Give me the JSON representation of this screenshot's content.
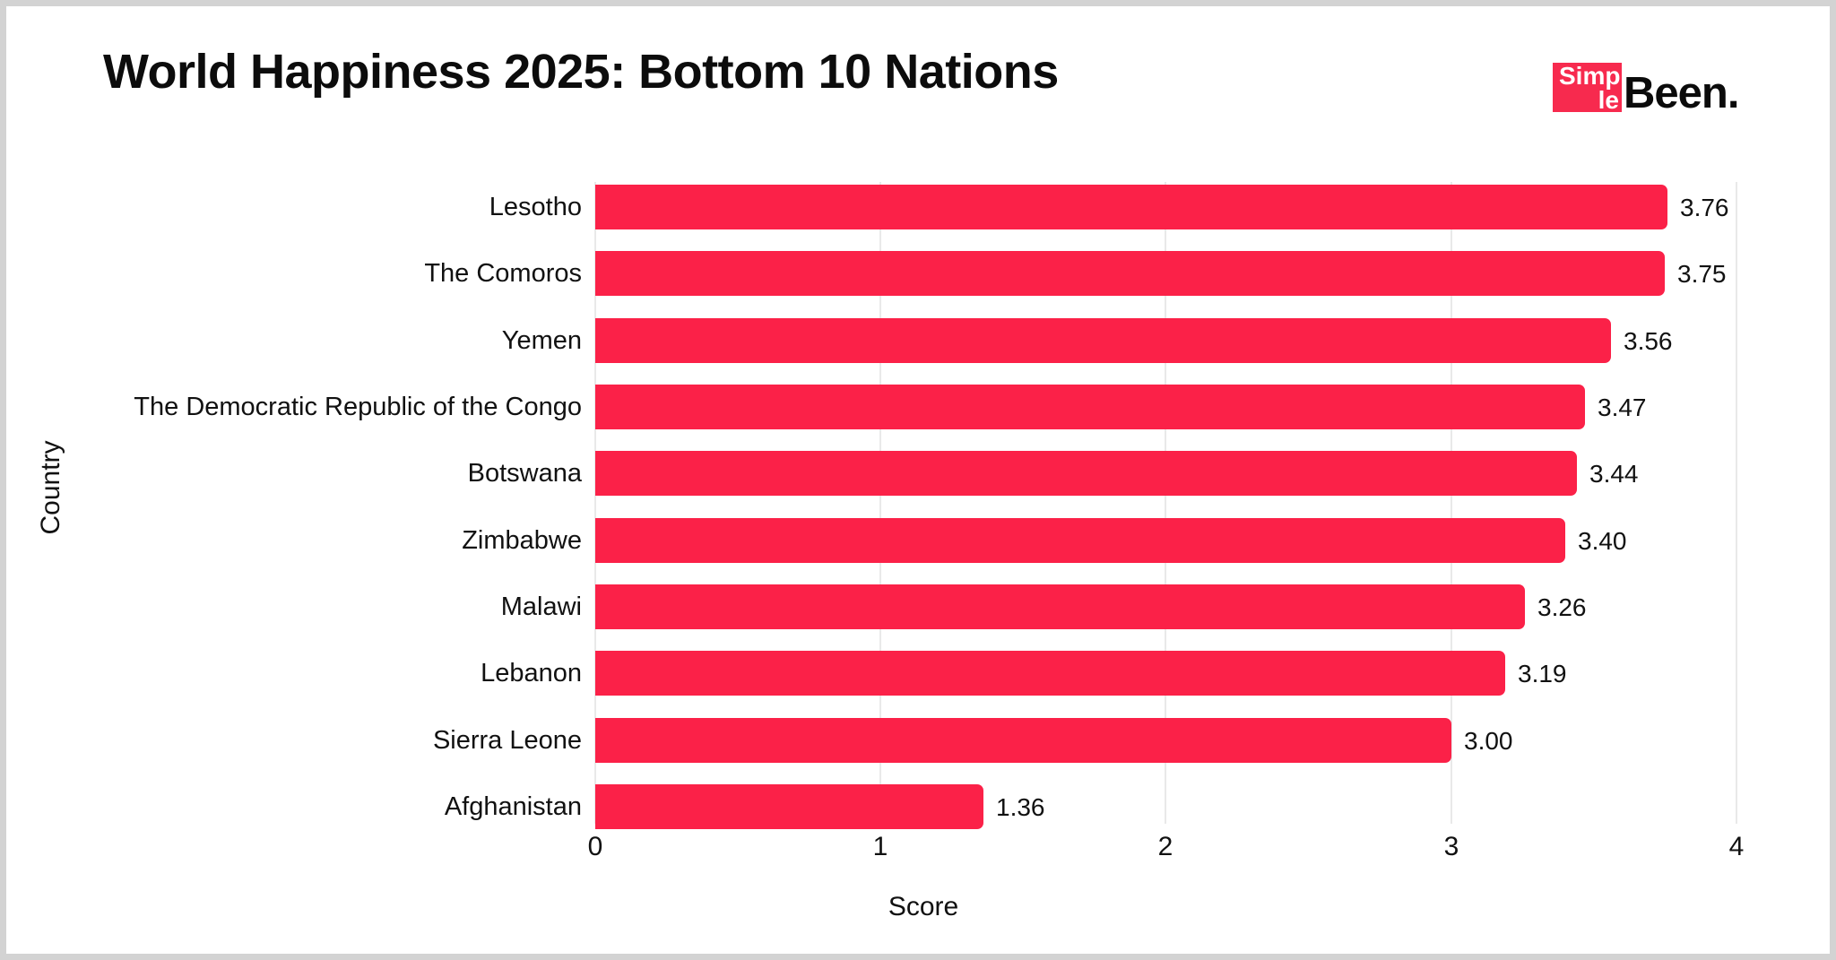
{
  "header": {
    "title": "World Happiness 2025: Bottom 10 Nations",
    "logo": {
      "line1": "Simp",
      "line2": "le",
      "suffix": "Been.",
      "box_color": "#f72a4e"
    }
  },
  "chart_data": {
    "type": "bar",
    "orientation": "horizontal",
    "title": "World Happiness 2025: Bottom 10 Nations",
    "categories": [
      "Lesotho",
      "The Comoros",
      "Yemen",
      "The Democratic Republic of the Congo",
      "Botswana",
      "Zimbabwe",
      "Malawi",
      "Lebanon",
      "Sierra Leone",
      "Afghanistan"
    ],
    "values": [
      3.76,
      3.75,
      3.56,
      3.47,
      3.44,
      3.4,
      3.26,
      3.19,
      3.0,
      1.36
    ],
    "value_labels": [
      "3.76",
      "3.75",
      "3.56",
      "3.47",
      "3.44",
      "3.40",
      "3.26",
      "3.19",
      "3.00",
      "1.36"
    ],
    "xlabel": "Score",
    "ylabel": "Country",
    "xlim": [
      0,
      4
    ],
    "xticks": [
      "0",
      "1",
      "2",
      "3",
      "4"
    ],
    "grid": "vertical-only",
    "legend": "none",
    "bar_color": "#fb2148",
    "gridline_color": "#e9e9e9"
  }
}
